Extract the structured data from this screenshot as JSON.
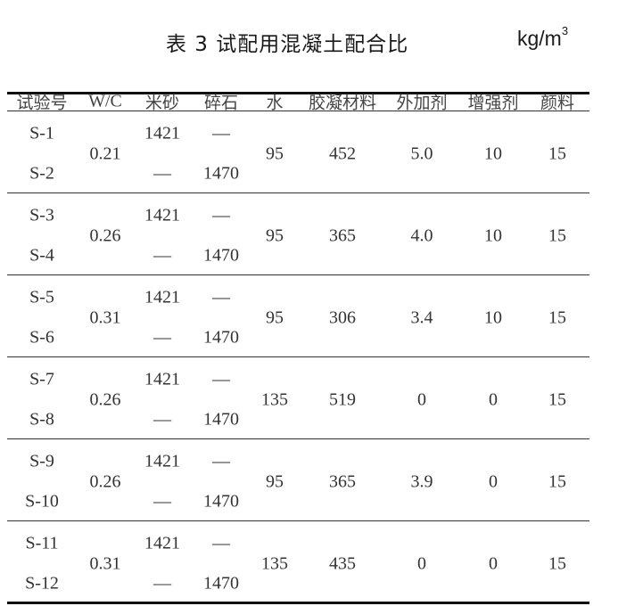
{
  "table": {
    "title": "表 3  试配用混凝土配合比",
    "unit": "kg/m",
    "unit_sup": "3",
    "headers": [
      "试验号",
      "W/C",
      "米砂",
      "碎石",
      "水",
      "胶凝材料",
      "外加剂",
      "增强剂",
      "颜料"
    ],
    "groups": [
      {
        "ids": [
          "S-1",
          "S-2"
        ],
        "wc": "0.21",
        "sand": [
          "1421",
          "—"
        ],
        "gravel": [
          "—",
          "1470"
        ],
        "water": "95",
        "binder": "452",
        "admixture": "5.0",
        "enhancer": "10",
        "pigment": "15"
      },
      {
        "ids": [
          "S-3",
          "S-4"
        ],
        "wc": "0.26",
        "sand": [
          "1421",
          "—"
        ],
        "gravel": [
          "—",
          "1470"
        ],
        "water": "95",
        "binder": "365",
        "admixture": "4.0",
        "enhancer": "10",
        "pigment": "15"
      },
      {
        "ids": [
          "S-5",
          "S-6"
        ],
        "wc": "0.31",
        "sand": [
          "1421",
          "—"
        ],
        "gravel": [
          "—",
          "1470"
        ],
        "water": "95",
        "binder": "306",
        "admixture": "3.4",
        "enhancer": "10",
        "pigment": "15"
      },
      {
        "ids": [
          "S-7",
          "S-8"
        ],
        "wc": "0.26",
        "sand": [
          "1421",
          "—"
        ],
        "gravel": [
          "—",
          "1470"
        ],
        "water": "135",
        "binder": "519",
        "admixture": "0",
        "enhancer": "0",
        "pigment": "15"
      },
      {
        "ids": [
          "S-9",
          "S-10"
        ],
        "wc": "0.26",
        "sand": [
          "1421",
          "—"
        ],
        "gravel": [
          "—",
          "1470"
        ],
        "water": "95",
        "binder": "365",
        "admixture": "3.9",
        "enhancer": "0",
        "pigment": "15"
      },
      {
        "ids": [
          "S-11",
          "S-12"
        ],
        "wc": "0.31",
        "sand": [
          "1421",
          "—"
        ],
        "gravel": [
          "—",
          "1470"
        ],
        "water": "135",
        "binder": "435",
        "admixture": "0",
        "enhancer": "0",
        "pigment": "15"
      }
    ]
  }
}
